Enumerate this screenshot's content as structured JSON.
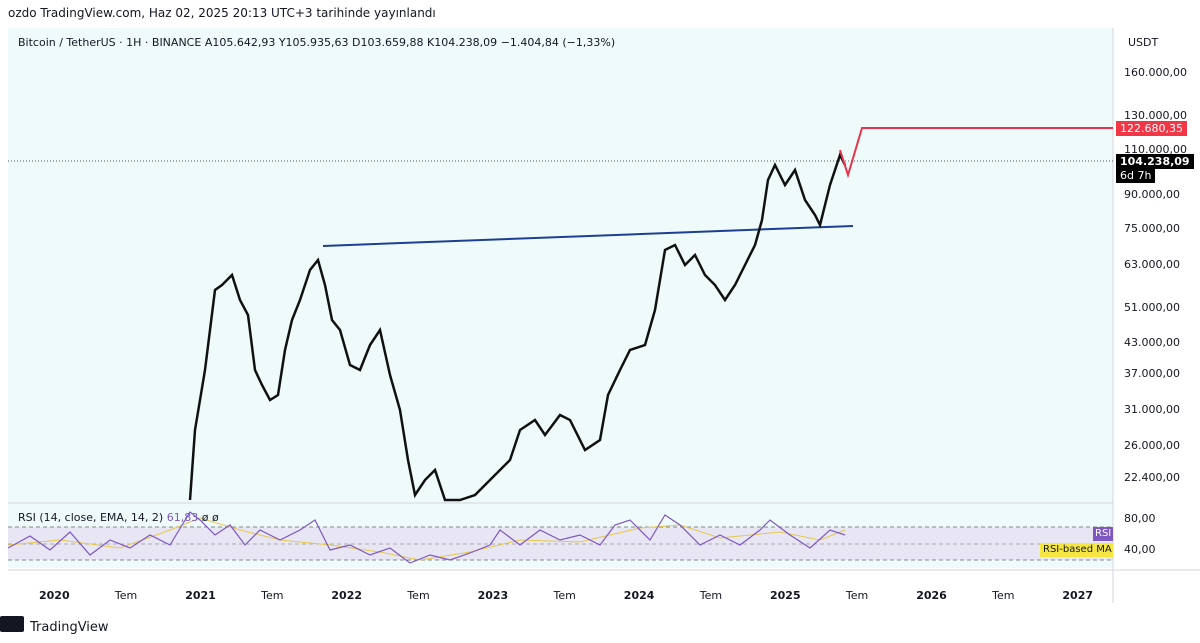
{
  "header": {
    "publisher": "ozdo TradingView.com, Haz 02, 2025 20:13 UTC+3 tarihinde yayınlandı"
  },
  "legend": {
    "symbol": "Bitcoin / TetherUS · 1H · BINANCE",
    "open": "A105.642,93",
    "high": "Y105.935,63",
    "low": "D103.659,88",
    "close": "K104.238,09",
    "change": "−1.404,84 (−1,33%)"
  },
  "price_axis": {
    "currency": "USDT",
    "labels": [
      "160.000,00",
      "130.000,00",
      "110.000,00",
      "90.000,00",
      "75.000,00",
      "63.000,00",
      "51.000,00",
      "43.000,00",
      "37.000,00",
      "31.000,00",
      "26.000,00",
      "22.400,00"
    ]
  },
  "badges": {
    "target": "122.680,35",
    "last_price": "104.238,09",
    "countdown": "6d 7h"
  },
  "rsi": {
    "title": "RSI (14, close, EMA, 14, 2)",
    "value": "61,83",
    "extra": "ø ø",
    "axis_labels": [
      "80,00",
      "40,00"
    ],
    "rsi_badge": "RSI",
    "ma_badge": "RSI-based MA"
  },
  "time_axis": {
    "labels": [
      "2020",
      "Tem",
      "2021",
      "Tem",
      "2022",
      "Tem",
      "2023",
      "Tem",
      "2024",
      "Tem",
      "2025",
      "Tem",
      "2026",
      "Tem",
      "2027"
    ]
  },
  "footer": {
    "brand": "TradingView"
  }
}
